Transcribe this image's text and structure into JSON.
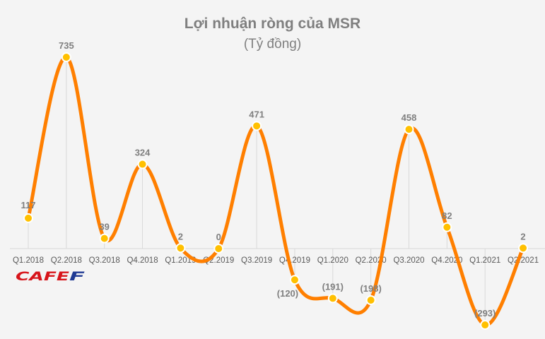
{
  "chart_data": {
    "type": "line",
    "title": "Lợi nhuận ròng của MSR",
    "subtitle": "(Tỷ đồng)",
    "categories": [
      "Q1.2018",
      "Q2.2018",
      "Q3.2018",
      "Q4.2018",
      "Q1.2019",
      "Q2.2019",
      "Q3.2019",
      "Q4.2019",
      "Q1.2020",
      "Q2.2020",
      "Q3.2020",
      "Q4.2020",
      "Q1.2021",
      "Q2.2021"
    ],
    "values": [
      117,
      735,
      39,
      324,
      2,
      0,
      471,
      -120,
      -191,
      -198,
      458,
      82,
      -293,
      2
    ],
    "data_labels": [
      "117",
      "735",
      "39",
      "324",
      "2",
      "0",
      "471",
      "(120)",
      "(191)",
      "(198)",
      "458",
      "82",
      "(293)",
      "2"
    ],
    "ylim": [
      -300,
      750
    ],
    "smooth": true,
    "line_color": "#ff7f00",
    "marker_color": "#ffc000",
    "grid": false
  },
  "logo": {
    "text": "CAFEF",
    "colors": [
      "#d7141a",
      "#1f3a93"
    ]
  }
}
